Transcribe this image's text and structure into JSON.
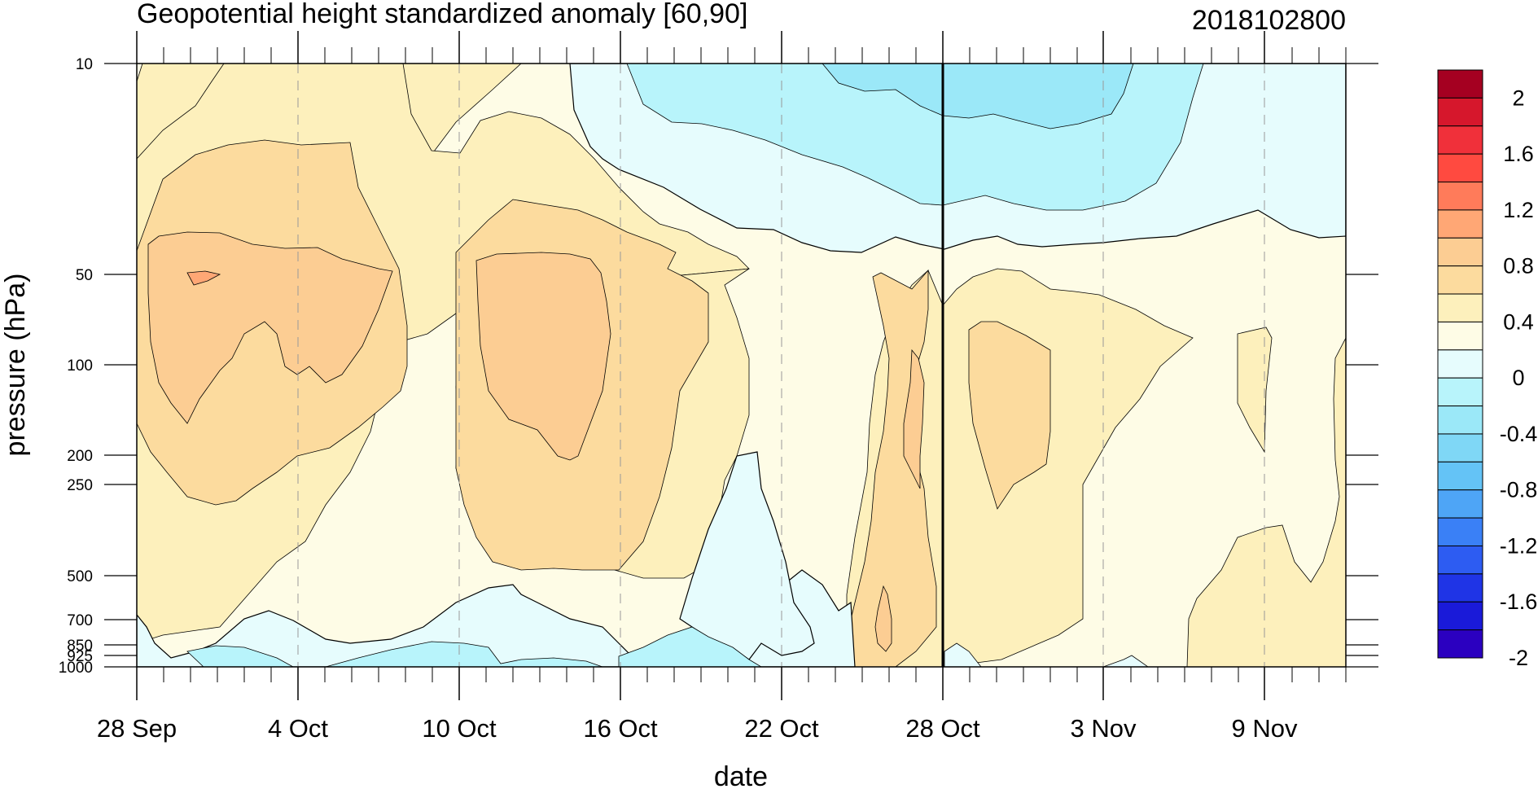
{
  "chart_data": {
    "type": "heatmap",
    "title": "Geopotential height standardized anomaly [60,90]",
    "date_label": "2018102800",
    "xlabel": "date",
    "ylabel": "pressure (hPa)",
    "x_ticks": [
      "28 Sep",
      "4 Oct",
      "10 Oct",
      "16 Oct",
      "22 Oct",
      "28 Oct",
      "3 Nov",
      "9 Nov"
    ],
    "x_range": [
      "2018-09-28",
      "2018-11-14"
    ],
    "y_ticks": [
      "10",
      "50",
      "100",
      "200",
      "250",
      "500",
      "700",
      "850",
      "925",
      "1000"
    ],
    "y_range": [
      1000,
      10
    ],
    "y_scale": "log",
    "reference_line": "28 Oct",
    "colorbar": {
      "labels": [
        "2",
        "1.6",
        "1.2",
        "0.8",
        "0.4",
        "0",
        "-0.4",
        "-0.8",
        "-1.2",
        "-1.6",
        "-2"
      ],
      "colors": [
        "#a50021",
        "#d6172c",
        "#f0303a",
        "#ff4a40",
        "#ff7b5a",
        "#ffa775",
        "#fccd93",
        "#fcdb9e",
        "#fdf0bc",
        "#fefce6",
        "#e6fcfd",
        "#b8f4fb",
        "#9be8f8",
        "#7fd7f6",
        "#64c3f6",
        "#4ea5f6",
        "#3a80f6",
        "#2d5cf2",
        "#1f34e6",
        "#1a1ad9",
        "#2b00c0"
      ]
    },
    "colors": {
      "pos_low": "#fefce6",
      "pos_0_4": "#fdf0bc",
      "pos_0_6": "#fcdb9e",
      "pos_0_8": "#fccd93",
      "pos_1_0": "#ffa775",
      "neg_low": "#e6fcfd",
      "neg_0_4": "#b8f4fb",
      "neg_0_6": "#9be8f8"
    }
  }
}
